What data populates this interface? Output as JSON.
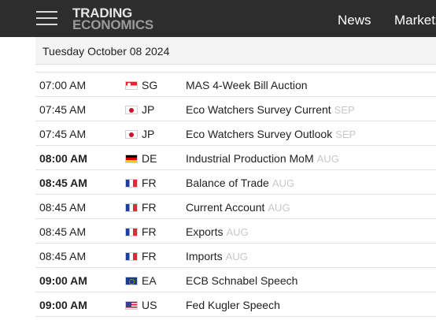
{
  "header": {
    "logo_line1": "TRADING",
    "logo_line2": "ECONOMICS",
    "nav": [
      "News",
      "Markets"
    ]
  },
  "calendar": {
    "date": "Tuesday October 08 2024",
    "rows": [
      {
        "time": "07:00 AM",
        "bold": false,
        "flag": "sg",
        "country": "SG",
        "event": "MAS 4-Week Bill Auction",
        "ref": ""
      },
      {
        "time": "07:45 AM",
        "bold": false,
        "flag": "jp",
        "country": "JP",
        "event": "Eco Watchers Survey Current",
        "ref": "SEP"
      },
      {
        "time": "07:45 AM",
        "bold": false,
        "flag": "jp",
        "country": "JP",
        "event": "Eco Watchers Survey Outlook",
        "ref": "SEP"
      },
      {
        "time": "08:00 AM",
        "bold": true,
        "flag": "de",
        "country": "DE",
        "event": "Industrial Production MoM",
        "ref": "AUG"
      },
      {
        "time": "08:45 AM",
        "bold": true,
        "flag": "fr",
        "country": "FR",
        "event": "Balance of Trade",
        "ref": "AUG"
      },
      {
        "time": "08:45 AM",
        "bold": false,
        "flag": "fr",
        "country": "FR",
        "event": "Current Account",
        "ref": "AUG"
      },
      {
        "time": "08:45 AM",
        "bold": false,
        "flag": "fr",
        "country": "FR",
        "event": "Exports",
        "ref": "AUG"
      },
      {
        "time": "08:45 AM",
        "bold": false,
        "flag": "fr",
        "country": "FR",
        "event": "Imports",
        "ref": "AUG"
      },
      {
        "time": "09:00 AM",
        "bold": true,
        "flag": "ea",
        "country": "EA",
        "event": "ECB Schnabel Speech",
        "ref": ""
      },
      {
        "time": "09:00 AM",
        "bold": true,
        "flag": "us",
        "country": "US",
        "event": "Fed Kugler Speech",
        "ref": ""
      }
    ]
  }
}
